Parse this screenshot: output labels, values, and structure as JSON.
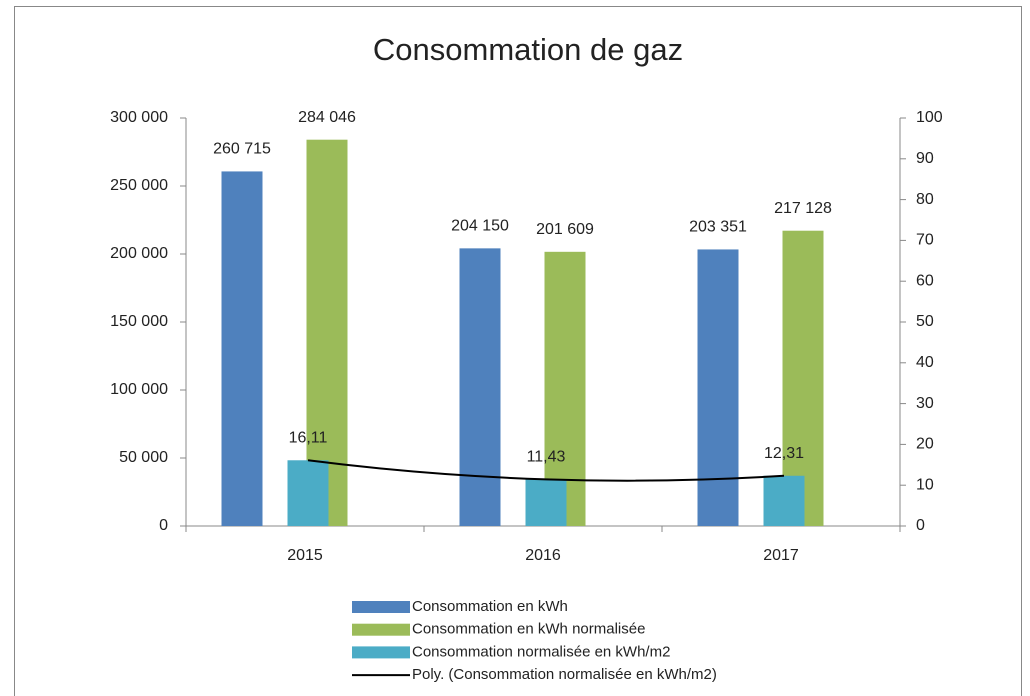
{
  "chart_data": {
    "type": "bar",
    "title": "Consommation de gaz",
    "categories": [
      "2015",
      "2016",
      "2017"
    ],
    "series": [
      {
        "name": "Consommation en kWh",
        "color": "#4f81bd",
        "values": [
          260715,
          204150,
          203351
        ],
        "value_labels": [
          "260 715",
          "204 150",
          "203 351"
        ]
      },
      {
        "name": "Consommation en kWh normalisée",
        "color": "#9bbb59",
        "values": [
          284046,
          201609,
          217128
        ],
        "value_labels": [
          "284 046",
          "201 609",
          "217 128"
        ]
      },
      {
        "name": "Consommation normalisée en kWh/m2",
        "color": "#4bacc6",
        "axis": "y2",
        "values": [
          16.11,
          11.43,
          12.31
        ],
        "value_labels": [
          "16,11",
          "11,43",
          "12,31"
        ]
      },
      {
        "name": "Poly. (Consommation normalisée en kWh/m2)",
        "color": "#000000",
        "axis": "y2",
        "type": "trendline",
        "values": [
          16.11,
          11.43,
          12.31
        ]
      }
    ],
    "ylim": [
      0,
      300000
    ],
    "yticks": [
      {
        "value": 0,
        "label": "0"
      },
      {
        "value": 50000,
        "label": "50 000"
      },
      {
        "value": 100000,
        "label": "100 000"
      },
      {
        "value": 150000,
        "label": "150 000"
      },
      {
        "value": 200000,
        "label": "200 000"
      },
      {
        "value": 250000,
        "label": "250 000"
      },
      {
        "value": 300000,
        "label": "300 000"
      }
    ],
    "y2lim": [
      0,
      100
    ],
    "y2ticks": [
      0,
      10,
      20,
      30,
      40,
      50,
      60,
      70,
      80,
      90,
      100
    ],
    "legend": "bottom"
  }
}
